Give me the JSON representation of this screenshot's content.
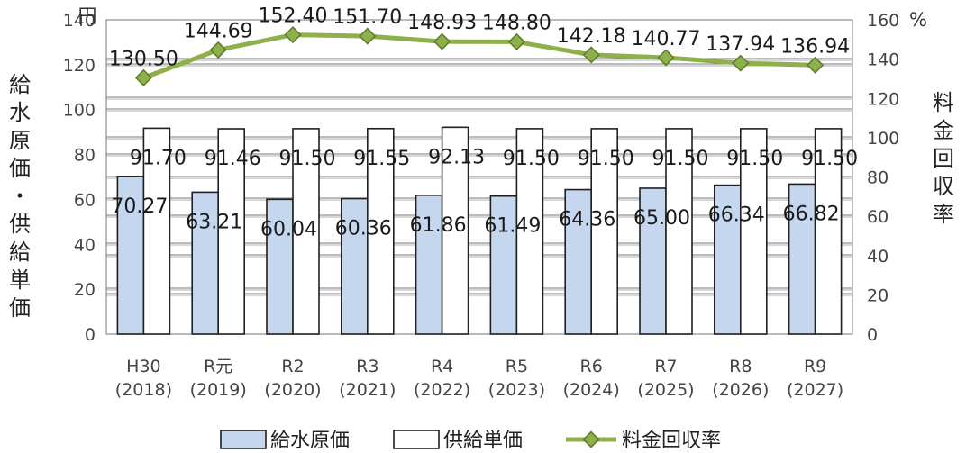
{
  "chart_data": {
    "type": "bar",
    "categories": [
      [
        "H30",
        "(2018)"
      ],
      [
        "R元",
        "(2019)"
      ],
      [
        "R2",
        "(2020)"
      ],
      [
        "R3",
        "(2021)"
      ],
      [
        "R4",
        "(2022)"
      ],
      [
        "R5",
        "(2023)"
      ],
      [
        "R6",
        "(2024)"
      ],
      [
        "R7",
        "(2025)"
      ],
      [
        "R8",
        "(2026)"
      ],
      [
        "R9",
        "(2027)"
      ]
    ],
    "series": [
      {
        "name": "給水原価",
        "type": "bar",
        "axis": "left",
        "color": "#c5d7ee",
        "values": [
          70.27,
          63.21,
          60.04,
          60.36,
          61.86,
          61.49,
          64.36,
          65.0,
          66.34,
          66.82
        ],
        "labels": [
          "70.27",
          "63.21",
          "60.04",
          "60.36",
          "61.86",
          "61.49",
          "64.36",
          "65.00",
          "66.34",
          "66.82"
        ]
      },
      {
        "name": "供給単価",
        "type": "bar",
        "axis": "left",
        "color": "#ffffff",
        "values": [
          91.7,
          91.46,
          91.5,
          91.55,
          92.13,
          91.5,
          91.5,
          91.5,
          91.5,
          91.5
        ],
        "labels": [
          "91.70",
          "91.46",
          "91.50",
          "91.55",
          "92.13",
          "91.50",
          "91.50",
          "91.50",
          "91.50",
          "91.50"
        ]
      },
      {
        "name": "料金回収率",
        "type": "line",
        "axis": "right",
        "color": "#8db04a",
        "marker_color": "#5e7a2a",
        "values": [
          130.5,
          144.69,
          152.4,
          151.7,
          148.93,
          148.8,
          142.18,
          140.77,
          137.94,
          136.94
        ],
        "labels": [
          "130.50",
          "144.69",
          "152.40",
          "151.70",
          "148.93",
          "148.80",
          "142.18",
          "140.77",
          "137.94",
          "136.94"
        ]
      }
    ],
    "left_axis": {
      "label_chars": [
        "給",
        "水",
        "原",
        "価",
        "・",
        "供",
        "給",
        "単",
        "価"
      ],
      "unit": "円",
      "ylim": [
        0,
        140
      ],
      "ticks": [
        0,
        20,
        40,
        60,
        80,
        100,
        120,
        140
      ]
    },
    "right_axis": {
      "label_chars": [
        "料",
        "金",
        "回",
        "収",
        "率"
      ],
      "unit": "%",
      "ylim": [
        0,
        160
      ],
      "ticks": [
        0,
        20,
        40,
        60,
        80,
        100,
        120,
        140,
        160
      ]
    },
    "grid": true,
    "legend_position": "bottom"
  }
}
